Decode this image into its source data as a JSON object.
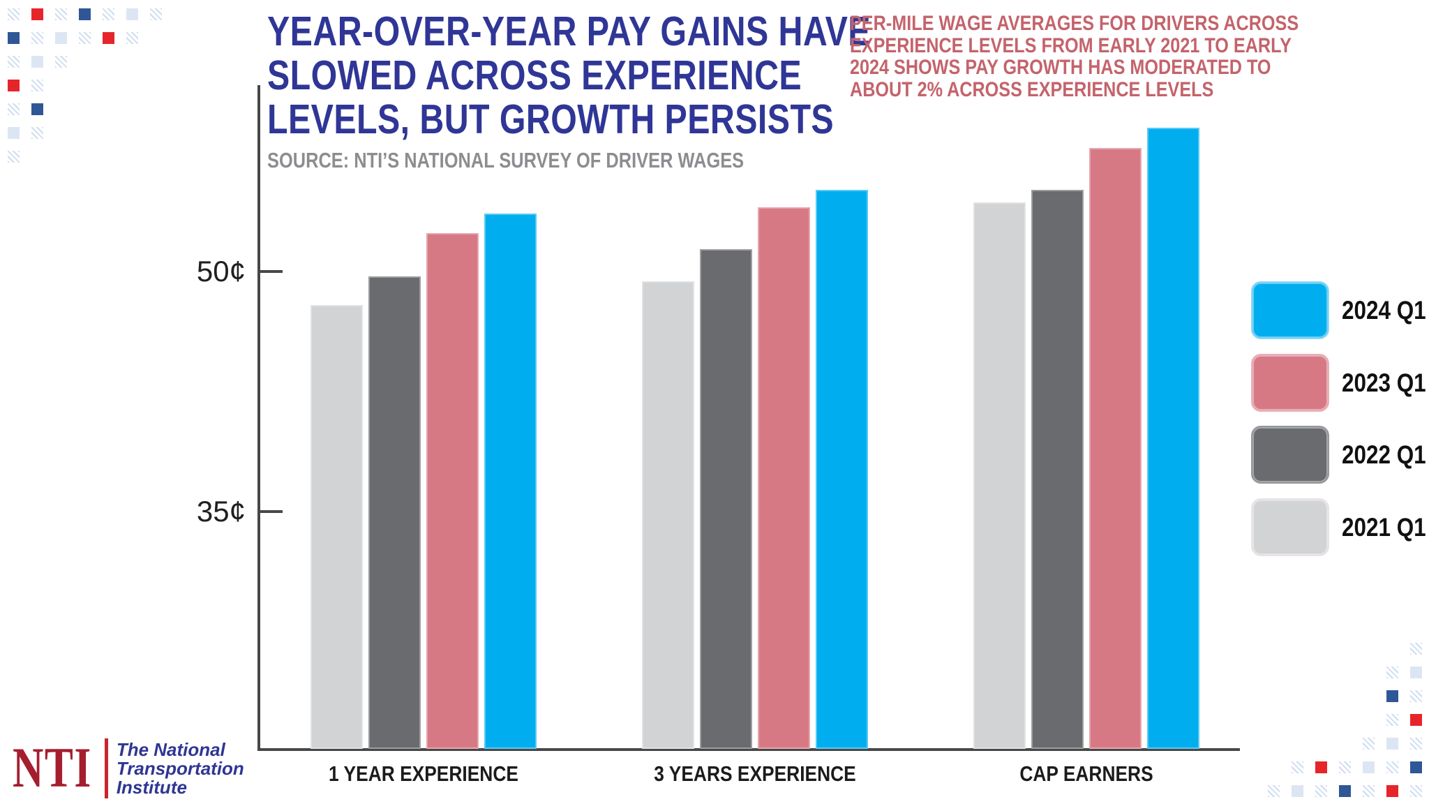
{
  "header": {
    "title_lines": [
      "YEAR-OVER-YEAR PAY GAINS HAVE",
      "SLOWED ACROSS EXPERIENCE",
      "LEVELS, BUT GROWTH PERSISTS"
    ],
    "title_color": "#2F3696",
    "source": "SOURCE: NTI’S NATIONAL SURVEY OF DRIVER WAGES",
    "source_color": "#8B8D90",
    "annotation_lines": [
      "PER-MILE WAGE AVERAGES FOR DRIVERS ACROSS",
      "EXPERIENCE LEVELS FROM EARLY 2021 TO EARLY",
      "2024 SHOWS PAY GROWTH HAS MODERATED TO",
      "ABOUT 2% ACROSS EXPERIENCE LEVELS"
    ],
    "annotation_color": "#C4636C"
  },
  "chart_data": {
    "type": "bar",
    "title": "YEAR-OVER-YEAR PAY GAINS HAVE SLOWED ACROSS EXPERIENCE LEVELS, BUT GROWTH PERSISTS",
    "subtitle": "SOURCE: NTI’S NATIONAL SURVEY OF DRIVER WAGES",
    "unit": "cents per mile",
    "categories": [
      "1 YEAR EXPERIENCE",
      "3 YEARS EXPERIENCE",
      "CAP EARNERS"
    ],
    "series": [
      {
        "name": "2021 Q1",
        "color": "#D2D3D5",
        "values": [
          47.9,
          49.4,
          54.3
        ]
      },
      {
        "name": "2022 Q1",
        "color": "#6A6B6E",
        "values": [
          49.7,
          51.4,
          55.1
        ]
      },
      {
        "name": "2023 Q1",
        "color": "#D77984",
        "values": [
          52.4,
          54.0,
          57.7
        ]
      },
      {
        "name": "2024 Q1",
        "color": "#00AEEF",
        "values": [
          53.6,
          55.1,
          59.0
        ]
      }
    ],
    "yticks": [
      {
        "value": 35,
        "label": "35¢"
      },
      {
        "value": 50,
        "label": "50¢"
      }
    ],
    "ylim": [
      20.2,
      61.6
    ],
    "grid": false,
    "legend_position": "right",
    "axis_color": "#474747",
    "tick_label_color": "#202020"
  },
  "legend": {
    "items": [
      {
        "label": "2024 Q1",
        "color": "#00AEEF",
        "border": "#8ED8F5"
      },
      {
        "label": "2023 Q1",
        "color": "#D77984",
        "border": "#E9AFB7"
      },
      {
        "label": "2022 Q1",
        "color": "#6A6B6E",
        "border": "#97989C"
      },
      {
        "label": "2021 Q1",
        "color": "#D2D3D5",
        "border": "#E8E3E5"
      }
    ]
  },
  "logo": {
    "abbr": "NTI",
    "name_lines": [
      "The National",
      "Transportation",
      "Institute"
    ],
    "red": "#A51E2F",
    "bar_red": "#C9252C",
    "blue": "#2F3693"
  },
  "decor": {
    "colors": {
      "red": "#E6252B",
      "blue": "#2F5797",
      "pale": "#DCE6F3",
      "stripe": "#CEDCEF"
    },
    "legend_key": {
      "s": "stripe-square",
      "r": "red-square",
      "b": "blue-square",
      "l": "pale-square"
    },
    "top_left": [
      "srsbsls",
      "bslsrs.",
      "sls....",
      "rs.....",
      "sb.....",
      "ls.....",
      "s......"
    ],
    "bottom_right": [
      "......s",
      ".....sl",
      ".....bs",
      ".....sr",
      "....sls",
      ".srslsb",
      "slsbsrs"
    ]
  }
}
